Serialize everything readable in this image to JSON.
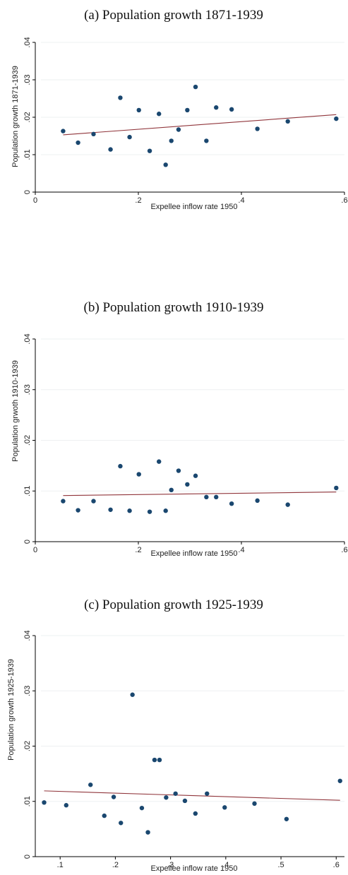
{
  "chart_data": [
    {
      "type": "scatter",
      "title": "(a) Population growth 1871-1939",
      "xlabel": "Expellee inflow rate 1950",
      "ylabel": "Population growth 1871-1939",
      "xticks": [
        "0",
        ".2",
        ".4",
        ".6"
      ],
      "xtick_values": [
        0,
        0.2,
        0.4,
        0.6
      ],
      "yticks": [
        "0",
        ".01",
        ".02",
        ".03",
        ".04"
      ],
      "ytick_values": [
        0,
        0.01,
        0.02,
        0.03,
        0.04
      ],
      "xlim": [
        0,
        0.6
      ],
      "ylim": [
        0,
        0.04
      ],
      "grid": true,
      "points": [
        {
          "x": 0.054,
          "y": 0.0163
        },
        {
          "x": 0.083,
          "y": 0.0132
        },
        {
          "x": 0.113,
          "y": 0.0155
        },
        {
          "x": 0.146,
          "y": 0.0114
        },
        {
          "x": 0.165,
          "y": 0.0252
        },
        {
          "x": 0.183,
          "y": 0.0147
        },
        {
          "x": 0.201,
          "y": 0.0219
        },
        {
          "x": 0.222,
          "y": 0.011
        },
        {
          "x": 0.24,
          "y": 0.0209
        },
        {
          "x": 0.253,
          "y": 0.0073
        },
        {
          "x": 0.264,
          "y": 0.0137
        },
        {
          "x": 0.278,
          "y": 0.0167
        },
        {
          "x": 0.295,
          "y": 0.0219
        },
        {
          "x": 0.311,
          "y": 0.0281
        },
        {
          "x": 0.332,
          "y": 0.0137
        },
        {
          "x": 0.351,
          "y": 0.0226
        },
        {
          "x": 0.381,
          "y": 0.0221
        },
        {
          "x": 0.431,
          "y": 0.0169
        },
        {
          "x": 0.49,
          "y": 0.0189
        },
        {
          "x": 0.584,
          "y": 0.0196
        }
      ],
      "fit_line": {
        "x": [
          0.054,
          0.584
        ],
        "y": [
          0.0153,
          0.0207
        ]
      },
      "marker_color": "#1a476f",
      "line_color": "#90353b"
    },
    {
      "type": "scatter",
      "title": "(b) Population growth 1910-1939",
      "xlabel": "Expellee inflow rate 1950",
      "ylabel": "Population grwoth 1910-1939",
      "xticks": [
        "0",
        ".2",
        ".4",
        ".6"
      ],
      "xtick_values": [
        0,
        0.2,
        0.4,
        0.6
      ],
      "yticks": [
        "0",
        ".01",
        ".02",
        ".03",
        ".04"
      ],
      "ytick_values": [
        0,
        0.01,
        0.02,
        0.03,
        0.04
      ],
      "xlim": [
        0,
        0.6
      ],
      "ylim": [
        0,
        0.04
      ],
      "grid": true,
      "points": [
        {
          "x": 0.054,
          "y": 0.008
        },
        {
          "x": 0.083,
          "y": 0.0062
        },
        {
          "x": 0.113,
          "y": 0.008
        },
        {
          "x": 0.146,
          "y": 0.0063
        },
        {
          "x": 0.165,
          "y": 0.0149
        },
        {
          "x": 0.183,
          "y": 0.0061
        },
        {
          "x": 0.201,
          "y": 0.0133
        },
        {
          "x": 0.222,
          "y": 0.0059
        },
        {
          "x": 0.24,
          "y": 0.0158
        },
        {
          "x": 0.253,
          "y": 0.0061
        },
        {
          "x": 0.264,
          "y": 0.0102
        },
        {
          "x": 0.278,
          "y": 0.014
        },
        {
          "x": 0.295,
          "y": 0.0113
        },
        {
          "x": 0.311,
          "y": 0.013
        },
        {
          "x": 0.332,
          "y": 0.0088
        },
        {
          "x": 0.351,
          "y": 0.0088
        },
        {
          "x": 0.381,
          "y": 0.0075
        },
        {
          "x": 0.431,
          "y": 0.0081
        },
        {
          "x": 0.49,
          "y": 0.0073
        },
        {
          "x": 0.584,
          "y": 0.0106
        }
      ],
      "fit_line": {
        "x": [
          0.054,
          0.584
        ],
        "y": [
          0.0091,
          0.0098
        ]
      },
      "marker_color": "#1a476f",
      "line_color": "#90353b"
    },
    {
      "type": "scatter",
      "title": "(c) Population growth 1925-1939",
      "xlabel": "Expellee inflow rate 1950",
      "ylabel": "Population growth 1925-1939",
      "xticks": [
        ".1",
        ".2",
        ".3",
        ".4",
        ".5",
        ".6"
      ],
      "xtick_values": [
        0.1,
        0.2,
        0.3,
        0.4,
        0.5,
        0.6
      ],
      "yticks": [
        "0",
        ".01",
        ".02",
        ".03",
        ".04"
      ],
      "ytick_values": [
        0,
        0.01,
        0.02,
        0.03,
        0.04
      ],
      "xlim": [
        0.055,
        0.615
      ],
      "ylim": [
        0,
        0.04
      ],
      "grid": true,
      "points": [
        {
          "x": 0.071,
          "y": 0.0098
        },
        {
          "x": 0.111,
          "y": 0.0093
        },
        {
          "x": 0.155,
          "y": 0.013
        },
        {
          "x": 0.18,
          "y": 0.0074
        },
        {
          "x": 0.197,
          "y": 0.0108
        },
        {
          "x": 0.21,
          "y": 0.0061
        },
        {
          "x": 0.231,
          "y": 0.0293
        },
        {
          "x": 0.248,
          "y": 0.0088
        },
        {
          "x": 0.259,
          "y": 0.0044
        },
        {
          "x": 0.271,
          "y": 0.0175
        },
        {
          "x": 0.28,
          "y": 0.0175
        },
        {
          "x": 0.292,
          "y": 0.0107
        },
        {
          "x": 0.309,
          "y": 0.0114
        },
        {
          "x": 0.326,
          "y": 0.0101
        },
        {
          "x": 0.345,
          "y": 0.0078
        },
        {
          "x": 0.366,
          "y": 0.0114
        },
        {
          "x": 0.398,
          "y": 0.0089
        },
        {
          "x": 0.452,
          "y": 0.0096
        },
        {
          "x": 0.51,
          "y": 0.0068
        },
        {
          "x": 0.607,
          "y": 0.0137
        }
      ],
      "fit_line": {
        "x": [
          0.071,
          0.607
        ],
        "y": [
          0.0119,
          0.0102
        ]
      },
      "marker_color": "#1a476f",
      "line_color": "#90353b"
    }
  ]
}
